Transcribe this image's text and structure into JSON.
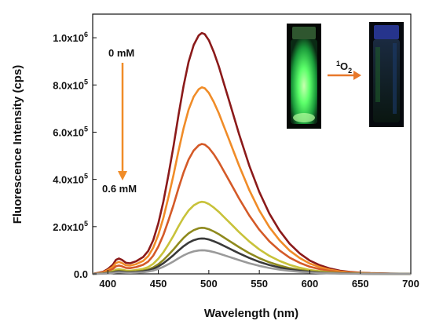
{
  "chart_data": {
    "type": "line",
    "xlabel": "Wavelength (nm)",
    "ylabel": "Fluorescence Intensity (cps)",
    "xlim": [
      385,
      700
    ],
    "ylim": [
      0,
      1100000
    ],
    "x_ticks": [
      400,
      450,
      500,
      550,
      600,
      650,
      700
    ],
    "x_tick_labels": [
      "400",
      "450",
      "500",
      "550",
      "600",
      "650",
      "700"
    ],
    "y_ticks": [
      0,
      200000,
      400000,
      600000,
      800000,
      1000000
    ],
    "y_tick_labels": [
      {
        "base": "0.0",
        "exp": ""
      },
      {
        "base": "2.0x10",
        "exp": "5"
      },
      {
        "base": "4.0x10",
        "exp": "5"
      },
      {
        "base": "6.0x10",
        "exp": "5"
      },
      {
        "base": "8.0x10",
        "exp": "5"
      },
      {
        "base": "1.0x10",
        "exp": "6"
      }
    ],
    "grid": false,
    "series": [
      {
        "color": "#8b1a1a",
        "peak": 1020000
      },
      {
        "color": "#f08c28",
        "peak": 790000
      },
      {
        "color": "#d45a28",
        "peak": 550000
      },
      {
        "color": "#c8c23a",
        "peak": 305000
      },
      {
        "color": "#8f8a1e",
        "peak": 195000
      },
      {
        "color": "#3a3a3a",
        "peak": 150000
      },
      {
        "color": "#9a9a9a",
        "peak": 100000
      }
    ],
    "spectrum_shape": {
      "x": [
        385,
        395,
        400,
        405,
        408,
        411,
        414,
        418,
        422,
        428,
        435,
        440,
        445,
        450,
        455,
        460,
        465,
        470,
        475,
        480,
        485,
        490,
        493,
        496,
        500,
        505,
        510,
        515,
        520,
        525,
        530,
        540,
        550,
        560,
        570,
        580,
        590,
        600,
        610,
        620,
        630,
        640,
        650,
        660,
        680,
        700
      ],
      "relative_y": [
        0.0,
        0.008,
        0.02,
        0.038,
        0.058,
        0.064,
        0.058,
        0.046,
        0.044,
        0.052,
        0.07,
        0.095,
        0.14,
        0.21,
        0.3,
        0.41,
        0.53,
        0.66,
        0.78,
        0.88,
        0.95,
        0.99,
        1.0,
        0.995,
        0.97,
        0.92,
        0.86,
        0.79,
        0.72,
        0.65,
        0.58,
        0.45,
        0.34,
        0.25,
        0.18,
        0.125,
        0.085,
        0.055,
        0.036,
        0.022,
        0.013,
        0.008,
        0.005,
        0.003,
        0.001,
        0.0
      ]
    },
    "annotations": {
      "start_label": "0 mM",
      "end_label": "0.6 mM",
      "arrow_color": "#f08c28"
    }
  },
  "inset": {
    "reaction_label_base": "O",
    "reaction_label_super": "1",
    "reaction_label_sub": "2",
    "arrow_color": "#e8782a"
  }
}
